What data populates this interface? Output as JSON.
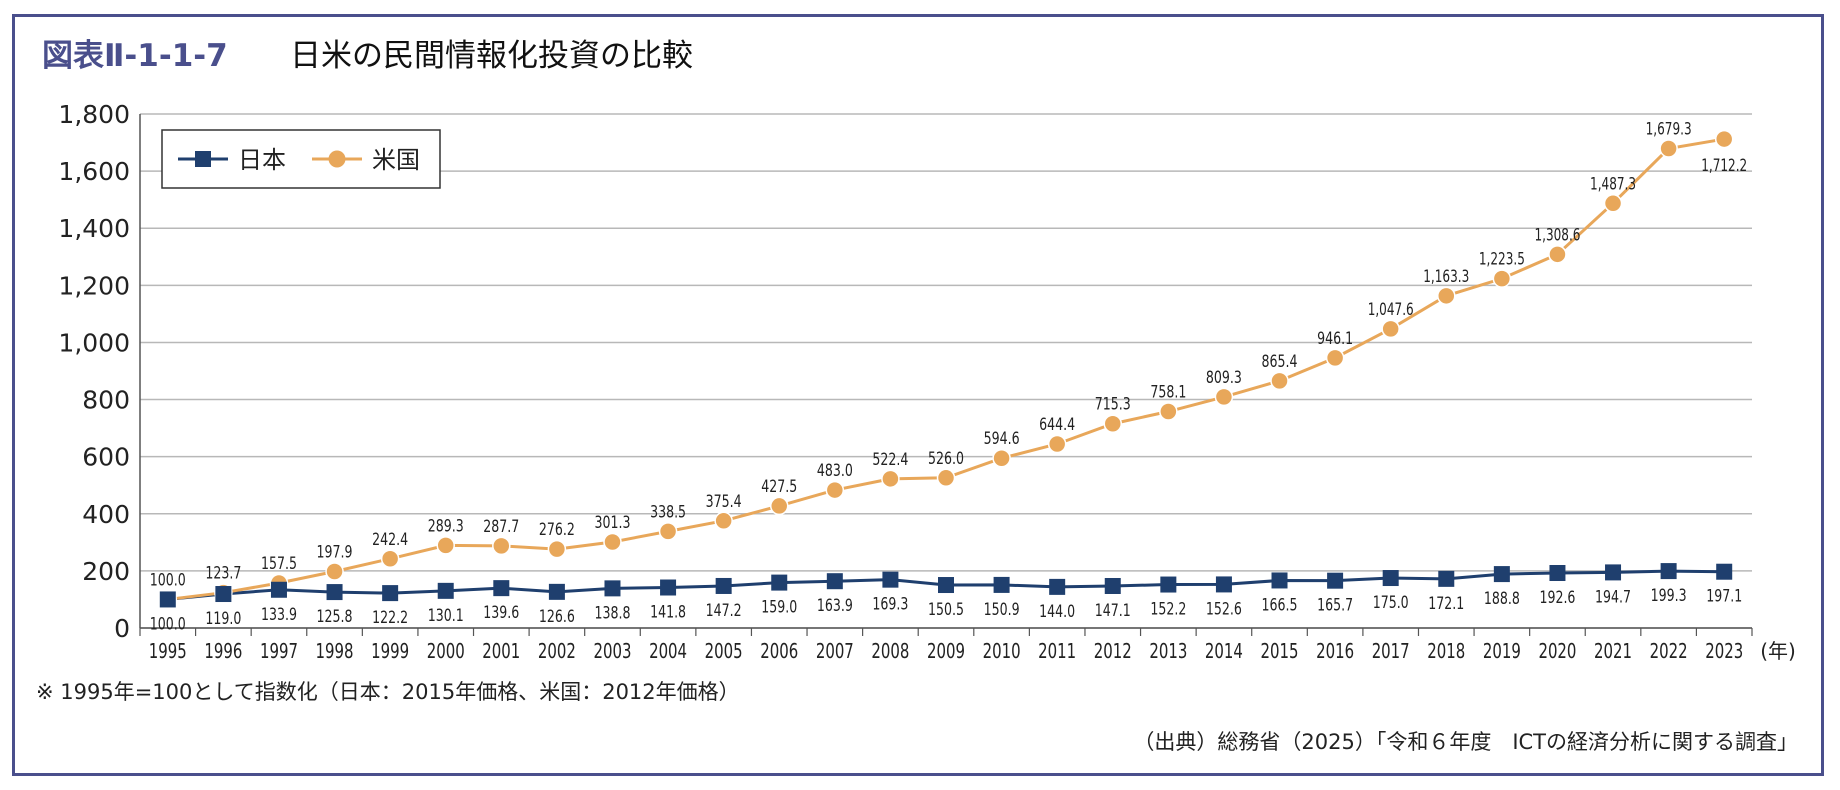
{
  "figure": {
    "number": "図表Ⅱ-1-1-7",
    "title": "日米の民間情報化投資の比較",
    "note": "※ 1995年=100として指数化（日本：2015年価格、米国：2012年価格）",
    "source": "（出典）総務省（2025）「令和６年度　ICTの経済分析に関する調査」"
  },
  "chart_data": {
    "type": "line",
    "x": [
      1995,
      1996,
      1997,
      1998,
      1999,
      2000,
      2001,
      2002,
      2003,
      2004,
      2005,
      2006,
      2007,
      2008,
      2009,
      2010,
      2011,
      2012,
      2013,
      2014,
      2015,
      2016,
      2017,
      2018,
      2019,
      2020,
      2021,
      2022,
      2023
    ],
    "x_unit_label": "(年)",
    "ylim": [
      0,
      1800
    ],
    "yticks": [
      0,
      200,
      400,
      600,
      800,
      1000,
      1200,
      1400,
      1600,
      1800
    ],
    "grid": true,
    "legend_position": "top-left",
    "series": [
      {
        "name": "日本",
        "color": "#1f3f6e",
        "marker": "square",
        "values": [
          100.0,
          119.0,
          133.9,
          125.8,
          122.2,
          130.1,
          139.6,
          126.6,
          138.8,
          141.8,
          147.2,
          159.0,
          163.9,
          169.3,
          150.5,
          150.9,
          144.0,
          147.1,
          152.2,
          152.6,
          166.5,
          165.7,
          175.0,
          172.1,
          188.8,
          192.6,
          194.7,
          199.3,
          197.1
        ],
        "labels": [
          "100.0",
          "119.0",
          "133.9",
          "125.8",
          "122.2",
          "130.1",
          "139.6",
          "126.6",
          "138.8",
          "141.8",
          "147.2",
          "159.0",
          "163.9",
          "169.3",
          "150.5",
          "150.9",
          "144.0",
          "147.1",
          "152.2",
          "152.6",
          "166.5",
          "165.7",
          "175.0",
          "172.1",
          "188.8",
          "192.6",
          "194.7",
          "199.3",
          "197.1"
        ]
      },
      {
        "name": "米国",
        "color": "#e8a75a",
        "marker": "circle",
        "values": [
          100.0,
          123.7,
          157.5,
          197.9,
          242.4,
          289.3,
          287.7,
          276.2,
          301.3,
          338.5,
          375.4,
          427.5,
          483.0,
          522.4,
          526.0,
          594.6,
          644.4,
          715.3,
          758.1,
          809.3,
          865.4,
          946.1,
          1047.6,
          1163.3,
          1223.5,
          1308.6,
          1487.3,
          1679.3,
          1712.2
        ],
        "labels": [
          "100.0",
          "123.7",
          "157.5",
          "197.9",
          "242.4",
          "289.3",
          "287.7",
          "276.2",
          "301.3",
          "338.5",
          "375.4",
          "427.5",
          "483.0",
          "522.4",
          "526.0",
          "594.6",
          "644.4",
          "715.3",
          "758.1",
          "809.3",
          "865.4",
          "946.1",
          "1,047.6",
          "1,163.3",
          "1,223.5",
          "1,308.6",
          "1,487.3",
          "1,679.3",
          "1,712.2"
        ]
      }
    ]
  }
}
